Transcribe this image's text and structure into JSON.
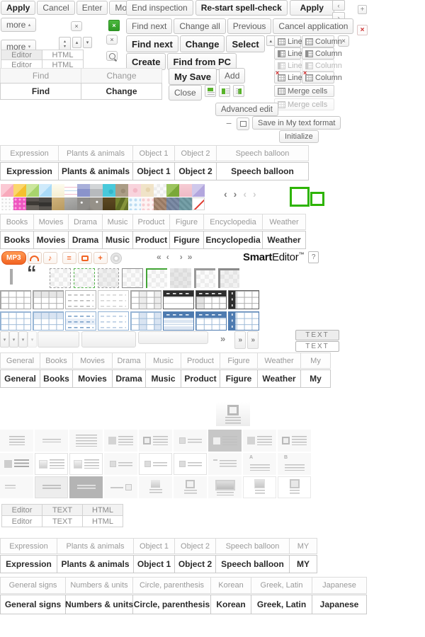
{
  "top": {
    "apply": "Apply",
    "cancel": "Cancel",
    "enter": "Enter",
    "modify": "Modify",
    "end_inspection": "End inspection",
    "restart": "Re-start spell-check",
    "apply2": "Apply",
    "more": "more",
    "find_next": "Find next",
    "change_all": "Change all",
    "previous": "Previous",
    "cancel_app": "Cancel application",
    "find_next2": "Find next",
    "change": "Change",
    "select": "Select",
    "create": "Create",
    "find_pc": "Find from PC",
    "my_save": "My Save",
    "add": "Add",
    "close": "Close",
    "advanced": "Advanced edit",
    "save_fmt": "Save in My text format",
    "init": "Initialize"
  },
  "glyphs": {
    "chev_left": "‹",
    "chev_right": "›",
    "plus": "+",
    "x": "×",
    "x_red": "×",
    "minus": "−",
    "tri_up": "▴",
    "tri_down": "▾",
    "laquo": "«",
    "raquo": "»",
    "quote": "“",
    "note": "♪",
    "list": "≡",
    "help": "?"
  },
  "brand": {
    "bold": "Smart",
    "rest": "Editor",
    "tm": "™"
  },
  "mp3_label": "MP3",
  "media_icons": [
    "headphones-icon",
    "music-note-icon",
    "playlist-icon",
    "tv-icon",
    "plus-icon",
    "disc-icon"
  ],
  "align_icons": [
    "align-top-icon",
    "align-left-icon",
    "align-right-icon"
  ],
  "editor_tabs": [
    "Editor",
    "HTML"
  ],
  "find_change": [
    "Find",
    "Change"
  ],
  "eth": [
    "Editor",
    "TEXT",
    "HTML"
  ],
  "text_buttons": [
    "TEXT",
    "TEXT"
  ],
  "controls": {
    "rows": [
      {
        "line": "Line",
        "column": "Column",
        "cls": "tc-a"
      },
      {
        "line": "Line",
        "column": "Column",
        "cls": "tc-b"
      },
      {
        "line": "Line",
        "column": "Column",
        "cls": "tc-b tc-c"
      },
      {
        "line": "Line",
        "column": "Column",
        "cls": "tc-d",
        "badge": "×"
      }
    ],
    "merge": "Merge cells",
    "merge_disabled": "Merge cells"
  },
  "tabs": {
    "sticker": [
      {
        "label": "Expression",
        "w": 83
      },
      {
        "label": "Plants & animals",
        "w": 105
      },
      {
        "label": "Object 1",
        "w": 59
      },
      {
        "label": "Object 2",
        "w": 59
      },
      {
        "label": "Speech balloon",
        "w": 130
      }
    ],
    "media": [
      {
        "label": "Books",
        "w": 48
      },
      {
        "label": "Movies",
        "w": 49
      },
      {
        "label": "Drama",
        "w": 48
      },
      {
        "label": "Music",
        "w": 43
      },
      {
        "label": "Product",
        "w": 52
      },
      {
        "label": "Figure",
        "w": 48
      },
      {
        "label": "Encyclopedia",
        "w": 83
      },
      {
        "label": "Weather",
        "w": 61
      }
    ],
    "general": [
      {
        "label": "General",
        "w": 57
      },
      {
        "label": "Books",
        "w": 46
      },
      {
        "label": "Movies",
        "w": 56
      },
      {
        "label": "Drama",
        "w": 47
      },
      {
        "label": "Music",
        "w": 50
      },
      {
        "label": "Product",
        "w": 55
      },
      {
        "label": "Figure",
        "w": 53
      },
      {
        "label": "Weather",
        "w": 61
      },
      {
        "label": "My",
        "w": 42
      }
    ],
    "sticker_my": [
      {
        "label": "Expression",
        "w": 81
      },
      {
        "label": "Plants & animals",
        "w": 108
      },
      {
        "label": "Object 1",
        "w": 58
      },
      {
        "label": "Object 2",
        "w": 58
      },
      {
        "label": "Speech balloon",
        "w": 104
      },
      {
        "label": "MY",
        "w": 39
      }
    ],
    "symbols": [
      {
        "label": "General signs",
        "w": 93
      },
      {
        "label": "Numbers & units",
        "w": 95
      },
      {
        "label": "Circle, parenthesis",
        "w": 110
      },
      {
        "label": "Korean",
        "w": 57
      },
      {
        "label": "Greek, Latin",
        "w": 86
      },
      {
        "label": "Japanese",
        "w": 77
      }
    ]
  },
  "palette": {
    "row1": [
      {
        "name": "pink",
        "bg": "linear-gradient(135deg,#fbc9d4 50%,#f8a9bb 50%)"
      },
      {
        "name": "orange",
        "bg": "linear-gradient(135deg,#fbd76e 50%,#f5c02f 50%)"
      },
      {
        "name": "green",
        "bg": "linear-gradient(135deg,#cbe69e 50%,#a8d46d 50%)"
      },
      {
        "name": "sky",
        "bg": "linear-gradient(135deg,#cfeafb 50%,#a9daf8 50%)"
      },
      {
        "name": "cream",
        "bg": "linear-gradient(#fdfbee,#f5eed2)"
      },
      {
        "name": "lined-white",
        "cls": "sw-lines"
      },
      {
        "name": "periwinkle",
        "bg": "linear-gradient(#a9b0da 40%,#8a93cb 40%)"
      },
      {
        "name": "gray",
        "bg": "linear-gradient(#d2d5d7 40%,#b7babd 40%)"
      },
      {
        "name": "teal",
        "bg": "radial-gradient(circle at 65% 60%,#35b6c9 3px,#49c9da 3.5px)"
      },
      {
        "name": "taupe",
        "bg": "radial-gradient(circle at 60% 55%,#9a8b74 3px,#ab9d86 3.5px)"
      },
      {
        "name": "pink-dots",
        "bg": "radial-gradient(circle at 55% 50%,#f3b9c6 3px,#f8d3dc 3.5px)"
      },
      {
        "name": "beige",
        "bg": "radial-gradient(circle at 55% 45%,#e6d4ae 3px,#f0e3c8 3.5px)"
      },
      {
        "name": "checker-light",
        "cls": "sw-checker"
      },
      {
        "name": "grass-green",
        "bg": "linear-gradient(135deg,#9cc45e 50%,#7aa838 50%)"
      },
      {
        "name": "pink-plaid",
        "bg": "linear-gradient(#f6ccd4,#eebac5)"
      },
      {
        "name": "lavender",
        "bg": "linear-gradient(135deg,#cfc8eb 50%,#b3a7de 50%)"
      }
    ],
    "row2": [
      {
        "name": "white-dots",
        "cls": "sw-dot-white"
      },
      {
        "name": "magenta-dots",
        "cls": "sw-dot-magenta"
      },
      {
        "name": "photo-dark-1",
        "bg": "linear-gradient(#5a5450 30%,#3e3a36 30% 60%,#6a645e 60%)"
      },
      {
        "name": "photo-dark-2",
        "bg": "linear-gradient(#4a4744 40%,#343230 40% 70%,#57534e 70%)"
      },
      {
        "name": "sand",
        "bg": "linear-gradient(160deg,#cfb27c,#b89a60)"
      },
      {
        "name": "stone",
        "bg": "linear-gradient(160deg,#b0b0ae,#949492)"
      },
      {
        "name": "sparkle-1",
        "cls": "sw-sparkle"
      },
      {
        "name": "sparkle-2",
        "cls": "sw-sparkle2"
      },
      {
        "name": "wood-dark",
        "bg": "linear-gradient(#5e4a22,#4a3a18)"
      },
      {
        "name": "camo-green",
        "bg": "linear-gradient(115deg,#74822f 30%,#5c6b24 30% 55%,#86943c 55% 75%,#66742a 75%)"
      },
      {
        "name": "blue-dots",
        "cls": "sw-dot-blue"
      },
      {
        "name": "pink-dots-2",
        "cls": "sw-dot-pink"
      },
      {
        "name": "stripe-brown",
        "cls": "sw-stripe-brown"
      },
      {
        "name": "stripe-blue",
        "cls": "sw-stripe-blue"
      },
      {
        "name": "stripe-teal",
        "cls": "sw-stripe-teal"
      },
      {
        "name": "none-slash",
        "cls": "sw-slash"
      }
    ]
  },
  "borders": {
    "items": [
      {
        "name": "dashed-gray",
        "cls": "bb1"
      },
      {
        "name": "dashed-green",
        "cls": "bb2"
      },
      {
        "name": "dashed-gray-filled",
        "cls": "bb3"
      },
      {
        "name": "solid-gray",
        "cls": "bb4"
      },
      {
        "name": "corner-green",
        "cls": "bb5"
      },
      {
        "name": "fill-gray",
        "cls": "bb6"
      },
      {
        "name": "corner-gray-thick",
        "cls": "bb7"
      },
      {
        "name": "corner-gray-thick-2",
        "cls": "bb8"
      }
    ]
  },
  "tables": {
    "gray": [
      {
        "name": "grid",
        "cls": "tsg1"
      },
      {
        "name": "header-row",
        "cls": "tsg2"
      },
      {
        "name": "dash-rows",
        "cls": "tsg3"
      },
      {
        "name": "dash-rows-light",
        "cls": "tsg4"
      },
      {
        "name": "alt-columns",
        "cls": "tsg5"
      },
      {
        "name": "dark-header",
        "cls": "tsg6"
      },
      {
        "name": "dark-header-grid",
        "cls": "tsg7"
      },
      {
        "name": "dark-first-column",
        "cls": "tsg8"
      }
    ],
    "blue": [
      {
        "name": "grid",
        "cls": "tsb tsb1"
      },
      {
        "name": "header-row",
        "cls": "tsb tsb2"
      },
      {
        "name": "dash-rows",
        "cls": "tsb tsb3"
      },
      {
        "name": "dash-rows-light",
        "cls": "tsb tsb4"
      },
      {
        "name": "alt-columns",
        "cls": "tsb tsb5"
      },
      {
        "name": "dark-header",
        "cls": "tsb tsb6"
      },
      {
        "name": "dark-header-grid",
        "cls": "tsb tsb7"
      },
      {
        "name": "dark-first-column",
        "cls": "tsb tsb8"
      }
    ]
  },
  "layouts": {
    "items": [
      {
        "name": "text-center",
        "cls": "L1",
        "t": ""
      },
      {
        "name": "text-two-lines",
        "cls": "L2",
        "t": ""
      },
      {
        "name": "text-paragraph",
        "cls": "L3",
        "t": ""
      },
      {
        "name": "image-left-text",
        "cls": "L4",
        "t": ""
      },
      {
        "name": "image-border-left-text",
        "cls": "L5",
        "t": ""
      },
      {
        "name": "thumb-left-two-lines",
        "cls": "L6",
        "t": ""
      },
      {
        "name": "image-left-text-selected",
        "cls": "L7",
        "t": ""
      },
      {
        "name": "image-left-text-2",
        "cls": "L4",
        "t": ""
      },
      {
        "name": "image-border-left-text-2",
        "cls": "L5",
        "t": ""
      },
      {
        "name": "image-left-text-bold",
        "cls": "L10",
        "t": ""
      },
      {
        "name": "card-image-text",
        "cls": "L11",
        "t": ""
      },
      {
        "name": "card-image-text-2",
        "cls": "L11",
        "t": ""
      },
      {
        "name": "thumb-left-two-lines-2",
        "cls": "L6",
        "t": ""
      },
      {
        "name": "card-thumb-two-lines",
        "cls": "L6 card",
        "t": ""
      },
      {
        "name": "card-thumb-two-lines-2",
        "cls": "L6 card",
        "t": ""
      },
      {
        "name": "dash-text",
        "cls": "L13",
        "t": ""
      },
      {
        "name": "letter-a-text",
        "cls": "L14",
        "t": "A"
      },
      {
        "name": "letter-b-text",
        "cls": "L14",
        "t": "B"
      },
      {
        "name": "text-two-lines-left",
        "cls": "L16",
        "t": ""
      },
      {
        "name": "box-text",
        "cls": "L17",
        "t": ""
      },
      {
        "name": "box-text-dark",
        "cls": "L18",
        "t": ""
      },
      {
        "name": "text-image-right",
        "cls": "L19",
        "t": ""
      },
      {
        "name": "image-top-text",
        "cls": "L20",
        "t": ""
      },
      {
        "name": "image-border-top-text",
        "cls": "L21",
        "t": ""
      },
      {
        "name": "wide-image-text",
        "cls": "L22",
        "t": ""
      },
      {
        "name": "card-image-top-text",
        "cls": "L23",
        "t": ""
      },
      {
        "name": "card-image-border-top-text",
        "cls": "L24",
        "t": ""
      }
    ]
  },
  "scroll": {
    "drops": [
      {
        "g": "▾",
        "cls": "sd1"
      },
      {
        "g": "▾",
        "cls": "sd2"
      },
      {
        "g": "▾",
        "cls": "sd3"
      },
      {
        "g": "▾",
        "cls": "sd4"
      }
    ],
    "tracks": [
      {
        "w": 59,
        "cls": "trkA"
      },
      {
        "w": 77,
        "cls": "trkB"
      },
      {
        "w": 99,
        "cls": "trkC"
      }
    ],
    "more_glyph": "»",
    "more_buttons": [
      "»",
      "»"
    ]
  }
}
